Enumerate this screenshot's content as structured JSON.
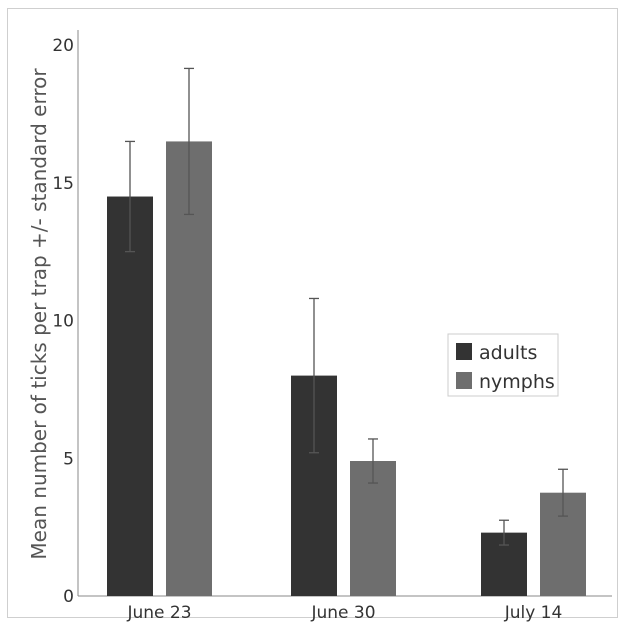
{
  "chart_data": {
    "type": "bar",
    "categories": [
      "June 23",
      "June 30",
      "July 14"
    ],
    "series": [
      {
        "name": "adults",
        "values": [
          14.5,
          8.0,
          2.3
        ],
        "errors": [
          2.0,
          2.8,
          0.45
        ],
        "color": "#333333"
      },
      {
        "name": "nymphs",
        "values": [
          16.5,
          4.9,
          3.75
        ],
        "errors": [
          2.65,
          0.8,
          0.85
        ],
        "color": "#6e6e6e"
      }
    ],
    "ylabel": "Mean number of ticks per trap +/- standard error",
    "xlabel": "",
    "ylim": [
      0,
      20
    ],
    "yticks": [
      0,
      5,
      10,
      15,
      20
    ],
    "grid": false,
    "legend_position": "right"
  }
}
